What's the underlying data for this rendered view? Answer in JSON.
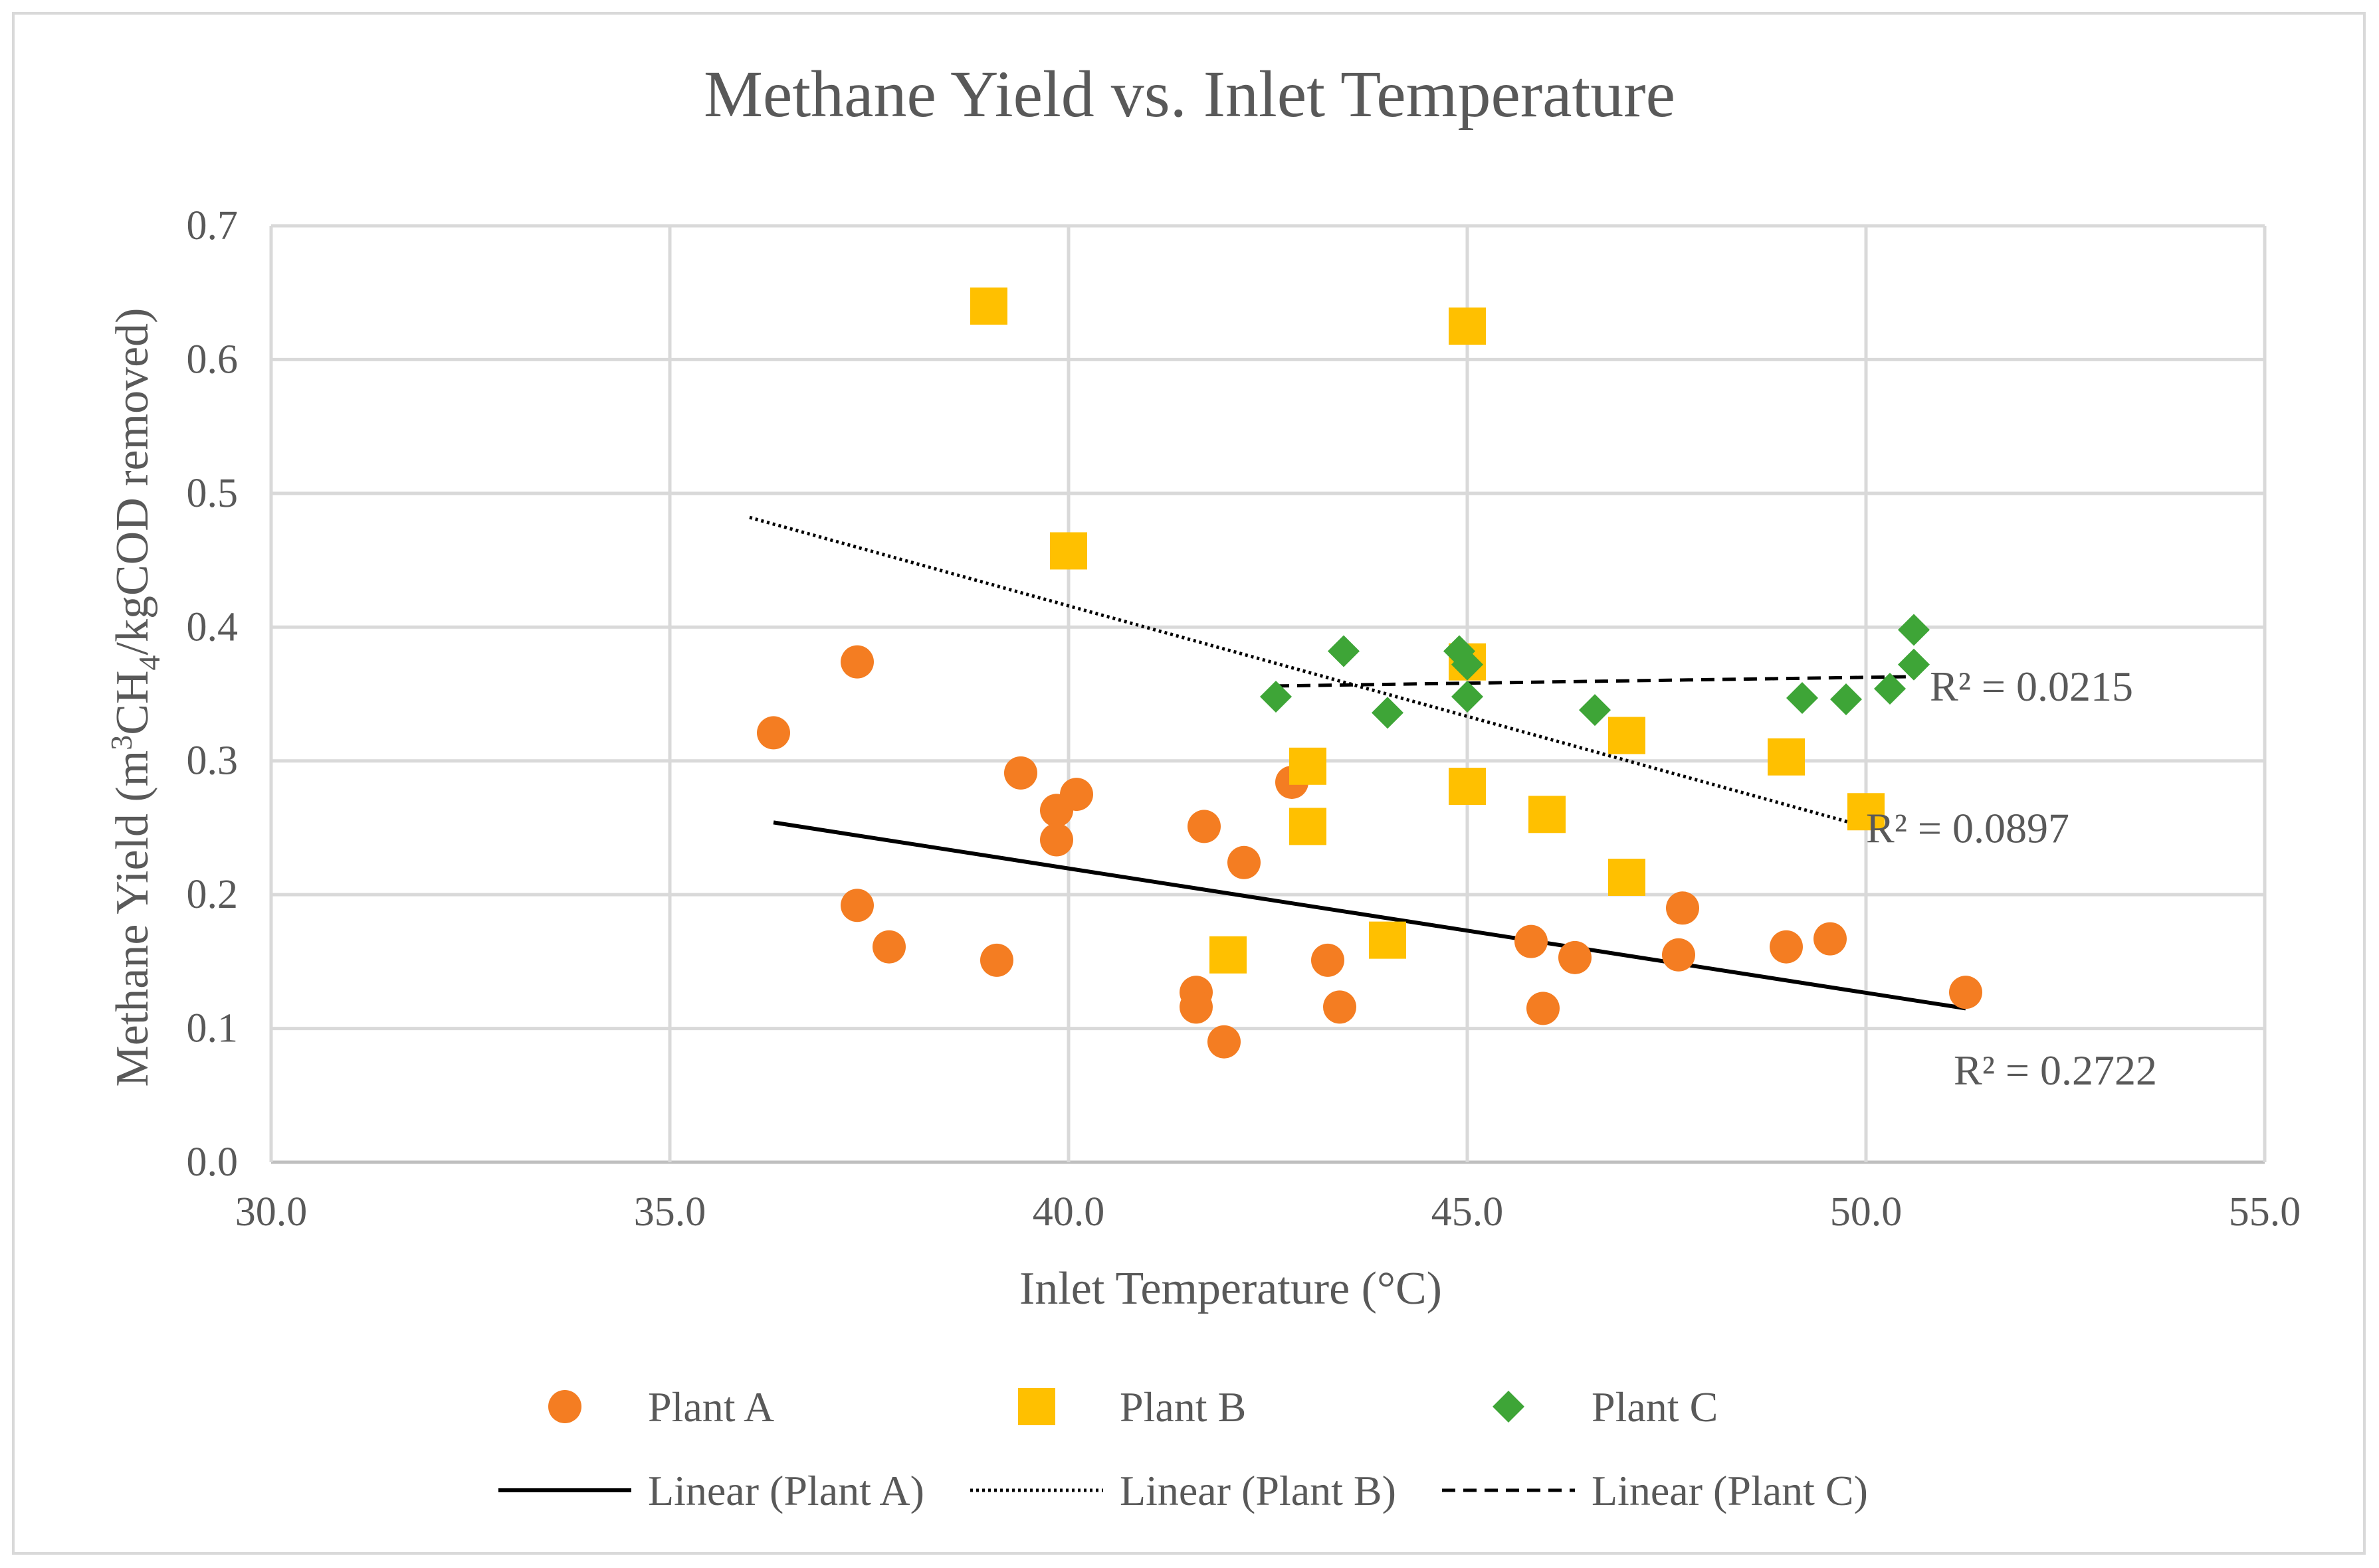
{
  "chart_data": {
    "type": "scatter",
    "title": "Methane Yield vs. Inlet Temperature",
    "xlabel": "Inlet Temperature (°C)",
    "ylabel": {
      "prefix": "Methane Yield (m",
      "sup": "3",
      "mid": "CH",
      "sub": "4",
      "suffix": "/kgCOD removed)"
    },
    "xlim": [
      30,
      55
    ],
    "ylim": [
      0,
      0.7
    ],
    "xticks": [
      "30.0",
      "35.0",
      "40.0",
      "45.0",
      "50.0",
      "55.0"
    ],
    "yticks": [
      "0.0",
      "0.1",
      "0.2",
      "0.3",
      "0.4",
      "0.5",
      "0.6",
      "0.7"
    ],
    "grid": true,
    "series": [
      {
        "name": "Plant A",
        "marker": "circle",
        "color": "#F47D22",
        "points": [
          [
            36.3,
            0.321
          ],
          [
            37.35,
            0.374
          ],
          [
            37.35,
            0.192
          ],
          [
            37.75,
            0.161
          ],
          [
            39.1,
            0.151
          ],
          [
            39.4,
            0.291
          ],
          [
            39.85,
            0.263
          ],
          [
            39.85,
            0.241
          ],
          [
            40.1,
            0.275
          ],
          [
            41.6,
            0.127
          ],
          [
            41.6,
            0.116
          ],
          [
            41.7,
            0.251
          ],
          [
            41.95,
            0.09
          ],
          [
            42.2,
            0.224
          ],
          [
            42.8,
            0.284
          ],
          [
            43.25,
            0.151
          ],
          [
            43.4,
            0.116
          ],
          [
            45.8,
            0.165
          ],
          [
            45.95,
            0.115
          ],
          [
            46.35,
            0.153
          ],
          [
            47.65,
            0.155
          ],
          [
            47.7,
            0.19
          ],
          [
            49.0,
            0.161
          ],
          [
            49.55,
            0.167
          ],
          [
            51.25,
            0.127
          ]
        ],
        "trendline": {
          "label": "Linear (Plant A)",
          "style": "solid",
          "x": [
            36.3,
            51.25
          ],
          "y": [
            0.254,
            0.115
          ],
          "r2": "R² = 0.2722"
        }
      },
      {
        "name": "Plant B",
        "marker": "square",
        "color": "#FFC000",
        "points": [
          [
            39.0,
            0.64
          ],
          [
            40.0,
            0.457
          ],
          [
            42.0,
            0.155
          ],
          [
            43.0,
            0.296
          ],
          [
            43.0,
            0.251
          ],
          [
            44.0,
            0.166
          ],
          [
            45.0,
            0.625
          ],
          [
            45.0,
            0.374
          ],
          [
            45.0,
            0.281
          ],
          [
            46.0,
            0.26
          ],
          [
            47.0,
            0.319
          ],
          [
            47.0,
            0.213
          ],
          [
            49.0,
            0.303
          ],
          [
            50.0,
            0.262
          ]
        ],
        "trendline": {
          "label": "Linear (Plant B)",
          "style": "dotted",
          "x": [
            36.0,
            49.8
          ],
          "y": [
            0.482,
            0.254
          ],
          "r2": "R² = 0.0897"
        }
      },
      {
        "name": "Plant C",
        "marker": "diamond",
        "color": "#3EA537",
        "points": [
          [
            42.6,
            0.348
          ],
          [
            43.45,
            0.382
          ],
          [
            44.0,
            0.336
          ],
          [
            44.9,
            0.382
          ],
          [
            45.0,
            0.372
          ],
          [
            45.0,
            0.348
          ],
          [
            46.6,
            0.338
          ],
          [
            49.2,
            0.347
          ],
          [
            49.75,
            0.346
          ],
          [
            50.3,
            0.354
          ],
          [
            50.6,
            0.372
          ],
          [
            50.6,
            0.398
          ]
        ],
        "trendline": {
          "label": "Linear (Plant C)",
          "style": "dashed",
          "x": [
            42.6,
            50.6
          ],
          "y": [
            0.356,
            0.363
          ],
          "r2": "R² = 0.0215"
        }
      }
    ]
  }
}
